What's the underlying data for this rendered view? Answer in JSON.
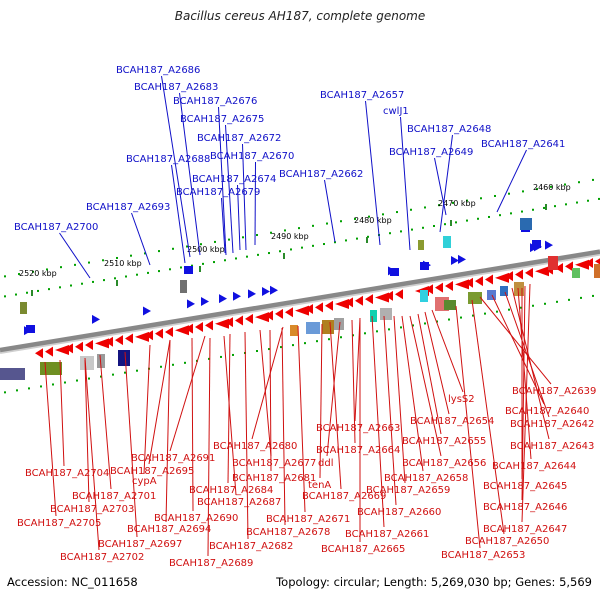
{
  "title": "Bacillus cereus AH187, complete genome",
  "footer": {
    "accession_label": "Accession:",
    "accession": "NC_011658",
    "topology_text": "Topology: circular; Length: 5,269,030 bp; Genes: 5,569"
  },
  "colors": {
    "forward_gene": "#1010e0",
    "reverse_gene": "#ee0000",
    "forward_label": "#1010c8",
    "reverse_label": "#d01010",
    "backbone": "#888888",
    "tick_dot": "#00a000"
  },
  "scale_ticks": [
    "2460 kbp",
    "2470 kbp",
    "2480 kbp",
    "2490 kbp",
    "2500 kbp",
    "2510 kbp",
    "2520 kbp"
  ],
  "forward_genes": [
    "BCAH187_A2686",
    "BCAH187_A2683",
    "BCAH187_A2676",
    "BCAH187_A2675",
    "BCAH187_A2672",
    "BCAH187_A2688",
    "BCAH187_A2670",
    "BCAH187_A2674",
    "BCAH187_A2679",
    "BCAH187_A2693",
    "BCAH187_A2700",
    "BCAH187_A2657",
    "cwlJ1",
    "BCAH187_A2648",
    "BCAH187_A2649",
    "BCAH187_A2641",
    "BCAH187_A2662"
  ],
  "reverse_genes": [
    "BCAH187_A2639",
    "BCAH187_A2640",
    "lysS2",
    "BCAH187_A2642",
    "BCAH187_A2654",
    "BCAH187_A2643",
    "BCAH187_A2663",
    "BCAH187_A2655",
    "BCAH187_A2680",
    "BCAH187_A2664",
    "BCAH187_A2691",
    "BCAH187_A2677",
    "ddl",
    "BCAH187_A2656",
    "BCAH187_A2644",
    "BCAH187_A2704",
    "BCAH187_A2695",
    "cypA",
    "BCAH187_A2681",
    "BCAH187_A2658",
    "BCAH187_A2684",
    "tenA",
    "BCAH187_A2645",
    "BCAH187_A2701",
    "BCAH187_A2687",
    "BCAH187_A2669",
    "BCAH187_A2659",
    "BCAH187_A2703",
    "BCAH187_A2690",
    "BCAH187_A2671",
    "BCAH187_A2660",
    "BCAH187_A2646",
    "BCAH187_A2705",
    "BCAH187_A2694",
    "BCAH187_A2678",
    "BCAH187_A2661",
    "BCAH187_A2647",
    "BCAH187_A2697",
    "BCAH187_A2682",
    "BCAH187_A2665",
    "BCAH187_A2650",
    "BCAH187_A2702",
    "BCAH187_A2653",
    "BCAH187_A2689"
  ]
}
